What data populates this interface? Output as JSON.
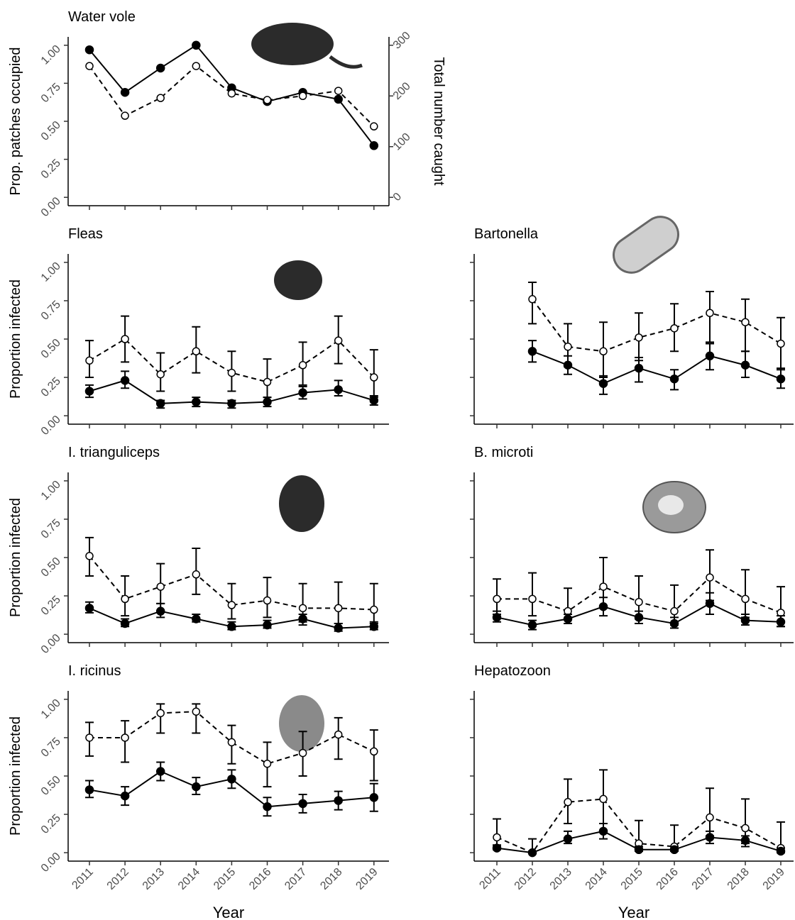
{
  "chart_data": [
    {
      "type": "line",
      "title": "Water vole",
      "ylabel": "Prop. patches occupied",
      "y2label": "Total number caught",
      "categories": [
        "2011",
        "2012",
        "2013",
        "2014",
        "2015",
        "2016",
        "2017",
        "2018",
        "2019"
      ],
      "series": [
        {
          "marker": "filled",
          "linestyle": "solid",
          "color": "#000000",
          "values": [
            0.97,
            0.69,
            0.85,
            1.0,
            0.72,
            0.63,
            0.69,
            0.645,
            0.34
          ]
        },
        {
          "marker": "open",
          "linestyle": "dashed",
          "color": "#000000",
          "axis": "y2",
          "values": [
            259,
            161,
            196,
            259,
            205,
            192,
            200,
            210,
            140
          ]
        }
      ],
      "ylim": [
        -0.055,
        1.055
      ],
      "yticks": [
        {
          "value": 0,
          "label": "0.00"
        },
        {
          "value": 0.25,
          "label": "0.25"
        },
        {
          "value": 0.5,
          "label": "0.50"
        },
        {
          "value": 0.75,
          "label": "0.75"
        },
        {
          "value": 1,
          "label": "1.00"
        }
      ],
      "y2lim": [
        -16.5,
        316.5
      ],
      "y2ticks": [
        0,
        100,
        200,
        300
      ],
      "xtick_labels": false,
      "ytick_labels": true
    },
    {
      "type": "line",
      "title": "Fleas",
      "ylabel": "Proportion infected",
      "categories": [
        "2011",
        "2012",
        "2013",
        "2014",
        "2015",
        "2016",
        "2017",
        "2018",
        "2019"
      ],
      "series": [
        {
          "marker": "open",
          "linestyle": "dashed",
          "color": "#000000",
          "values": [
            0.36,
            0.5,
            0.27,
            0.42,
            0.28,
            0.22,
            0.33,
            0.49,
            0.25
          ],
          "lower": [
            0.25,
            0.35,
            0.16,
            0.28,
            0.16,
            0.12,
            0.2,
            0.34,
            0.12
          ],
          "upper": [
            0.49,
            0.65,
            0.41,
            0.58,
            0.42,
            0.37,
            0.48,
            0.65,
            0.43
          ]
        },
        {
          "marker": "filled",
          "linestyle": "solid",
          "color": "#000000",
          "values": [
            0.16,
            0.23,
            0.08,
            0.09,
            0.08,
            0.09,
            0.15,
            0.17,
            0.1
          ],
          "lower": [
            0.12,
            0.18,
            0.05,
            0.06,
            0.05,
            0.06,
            0.11,
            0.13,
            0.07
          ],
          "upper": [
            0.2,
            0.29,
            0.1,
            0.12,
            0.1,
            0.12,
            0.19,
            0.23,
            0.13
          ]
        }
      ],
      "ylim": [
        -0.055,
        1.055
      ],
      "yticks": [
        {
          "value": 0,
          "label": "0.00"
        },
        {
          "value": 0.25,
          "label": "0.25"
        },
        {
          "value": 0.5,
          "label": "0.50"
        },
        {
          "value": 0.75,
          "label": "0.75"
        },
        {
          "value": 1,
          "label": "1.00"
        }
      ],
      "xtick_labels": false,
      "ytick_labels": true
    },
    {
      "type": "line",
      "title": "Bartonella",
      "categories": [
        "2011",
        "2012",
        "2013",
        "2014",
        "2015",
        "2016",
        "2017",
        "2018",
        "2019"
      ],
      "series": [
        {
          "marker": "open",
          "linestyle": "dashed",
          "color": "#000000",
          "values": [
            null,
            0.76,
            0.45,
            0.42,
            0.51,
            0.57,
            0.67,
            0.61,
            0.47
          ],
          "lower": [
            null,
            0.6,
            0.32,
            0.25,
            0.36,
            0.42,
            0.48,
            0.42,
            0.3
          ],
          "upper": [
            null,
            0.87,
            0.6,
            0.61,
            0.67,
            0.73,
            0.81,
            0.76,
            0.64
          ]
        },
        {
          "marker": "filled",
          "linestyle": "solid",
          "color": "#000000",
          "values": [
            null,
            0.42,
            0.33,
            0.21,
            0.31,
            0.24,
            0.39,
            0.33,
            0.24
          ],
          "lower": [
            null,
            0.35,
            0.27,
            0.14,
            0.22,
            0.17,
            0.3,
            0.25,
            0.18
          ],
          "upper": [
            null,
            0.49,
            0.39,
            0.26,
            0.38,
            0.3,
            0.47,
            0.42,
            0.31
          ]
        }
      ],
      "ylim": [
        -0.055,
        1.055
      ],
      "yticks": [
        0,
        0.25,
        0.5,
        0.75,
        1
      ],
      "xtick_labels": false,
      "ytick_labels": false
    },
    {
      "type": "line",
      "title": "I. trianguliceps",
      "ylabel": "Proportion infected",
      "categories": [
        "2011",
        "2012",
        "2013",
        "2014",
        "2015",
        "2016",
        "2017",
        "2018",
        "2019"
      ],
      "series": [
        {
          "marker": "open",
          "linestyle": "dashed",
          "color": "#000000",
          "values": [
            0.51,
            0.23,
            0.31,
            0.39,
            0.19,
            0.22,
            0.17,
            0.17,
            0.16
          ],
          "lower": [
            0.38,
            0.12,
            0.2,
            0.26,
            0.1,
            0.11,
            0.08,
            0.07,
            0.07
          ],
          "upper": [
            0.63,
            0.38,
            0.46,
            0.56,
            0.33,
            0.37,
            0.33,
            0.34,
            0.33
          ]
        },
        {
          "marker": "filled",
          "linestyle": "solid",
          "color": "#000000",
          "values": [
            0.17,
            0.07,
            0.15,
            0.1,
            0.05,
            0.06,
            0.1,
            0.04,
            0.05
          ],
          "lower": [
            0.14,
            0.05,
            0.11,
            0.08,
            0.03,
            0.04,
            0.06,
            0.02,
            0.03
          ],
          "upper": [
            0.21,
            0.1,
            0.2,
            0.13,
            0.08,
            0.09,
            0.13,
            0.07,
            0.08
          ]
        }
      ],
      "ylim": [
        -0.055,
        1.055
      ],
      "yticks": [
        {
          "value": 0,
          "label": "0.00"
        },
        {
          "value": 0.25,
          "label": "0.25"
        },
        {
          "value": 0.5,
          "label": "0.50"
        },
        {
          "value": 0.75,
          "label": "0.75"
        },
        {
          "value": 1,
          "label": "1.00"
        }
      ],
      "xtick_labels": false,
      "ytick_labels": true
    },
    {
      "type": "line",
      "title": "B. microti",
      "categories": [
        "2011",
        "2012",
        "2013",
        "2014",
        "2015",
        "2016",
        "2017",
        "2018",
        "2019"
      ],
      "series": [
        {
          "marker": "open",
          "linestyle": "dashed",
          "color": "#000000",
          "values": [
            0.23,
            0.23,
            0.15,
            0.31,
            0.21,
            0.15,
            0.37,
            0.23,
            0.14
          ],
          "lower": [
            0.13,
            0.12,
            0.07,
            0.17,
            0.1,
            0.06,
            0.22,
            0.11,
            0.05
          ],
          "upper": [
            0.36,
            0.4,
            0.3,
            0.5,
            0.38,
            0.32,
            0.55,
            0.42,
            0.31
          ]
        },
        {
          "marker": "filled",
          "linestyle": "solid",
          "color": "#000000",
          "values": [
            0.11,
            0.06,
            0.1,
            0.18,
            0.11,
            0.07,
            0.2,
            0.09,
            0.08
          ],
          "lower": [
            0.08,
            0.03,
            0.07,
            0.12,
            0.07,
            0.04,
            0.13,
            0.06,
            0.05
          ],
          "upper": [
            0.15,
            0.09,
            0.13,
            0.24,
            0.15,
            0.11,
            0.27,
            0.13,
            0.12
          ]
        }
      ],
      "ylim": [
        -0.055,
        1.055
      ],
      "yticks": [
        0,
        0.25,
        0.5,
        0.75,
        1
      ],
      "xtick_labels": false,
      "ytick_labels": false
    },
    {
      "type": "line",
      "title": "I. ricinus",
      "ylabel": "Proportion infected",
      "xlabel": "Year",
      "categories": [
        "2011",
        "2012",
        "2013",
        "2014",
        "2015",
        "2016",
        "2017",
        "2018",
        "2019"
      ],
      "series": [
        {
          "marker": "open",
          "linestyle": "dashed",
          "color": "#000000",
          "values": [
            0.75,
            0.75,
            0.91,
            0.92,
            0.72,
            0.58,
            0.65,
            0.77,
            0.66
          ],
          "lower": [
            0.63,
            0.59,
            0.78,
            0.78,
            0.58,
            0.43,
            0.5,
            0.61,
            0.47
          ],
          "upper": [
            0.85,
            0.86,
            0.97,
            0.97,
            0.83,
            0.72,
            0.79,
            0.88,
            0.8
          ]
        },
        {
          "marker": "filled",
          "linestyle": "solid",
          "color": "#000000",
          "values": [
            0.41,
            0.37,
            0.53,
            0.43,
            0.48,
            0.3,
            0.32,
            0.34,
            0.36
          ],
          "lower": [
            0.36,
            0.31,
            0.47,
            0.38,
            0.42,
            0.24,
            0.26,
            0.28,
            0.27
          ],
          "upper": [
            0.47,
            0.43,
            0.59,
            0.49,
            0.54,
            0.36,
            0.38,
            0.4,
            0.45
          ]
        }
      ],
      "ylim": [
        -0.055,
        1.055
      ],
      "yticks": [
        {
          "value": 0,
          "label": "0.00"
        },
        {
          "value": 0.25,
          "label": "0.25"
        },
        {
          "value": 0.5,
          "label": "0.50"
        },
        {
          "value": 0.75,
          "label": "0.75"
        },
        {
          "value": 1,
          "label": "1.00"
        }
      ],
      "xtick_labels": true,
      "ytick_labels": true
    },
    {
      "type": "line",
      "title": "Hepatozoon",
      "xlabel": "Year",
      "categories": [
        "2011",
        "2012",
        "2013",
        "2014",
        "2015",
        "2016",
        "2017",
        "2018",
        "2019"
      ],
      "series": [
        {
          "marker": "open",
          "linestyle": "dashed",
          "color": "#000000",
          "values": [
            0.1,
            0.0,
            0.33,
            0.35,
            0.06,
            0.04,
            0.23,
            0.16,
            0.03
          ],
          "lower": [
            0.04,
            0.0,
            0.19,
            0.19,
            0.01,
            0.01,
            0.11,
            0.06,
            0.0
          ],
          "upper": [
            0.22,
            0.09,
            0.48,
            0.54,
            0.21,
            0.18,
            0.42,
            0.35,
            0.2
          ]
        },
        {
          "marker": "filled",
          "linestyle": "solid",
          "color": "#000000",
          "values": [
            0.03,
            0.0,
            0.09,
            0.14,
            0.02,
            0.02,
            0.1,
            0.08,
            0.01
          ],
          "lower": [
            0.02,
            0.0,
            0.06,
            0.09,
            0.01,
            0.01,
            0.06,
            0.04,
            0.01
          ],
          "upper": [
            0.05,
            0.01,
            0.14,
            0.19,
            0.04,
            0.04,
            0.14,
            0.11,
            0.03
          ]
        }
      ],
      "ylim": [
        -0.055,
        1.055
      ],
      "yticks": [
        0,
        0.25,
        0.5,
        0.75,
        1
      ],
      "xtick_labels": true,
      "ytick_labels": false
    }
  ]
}
